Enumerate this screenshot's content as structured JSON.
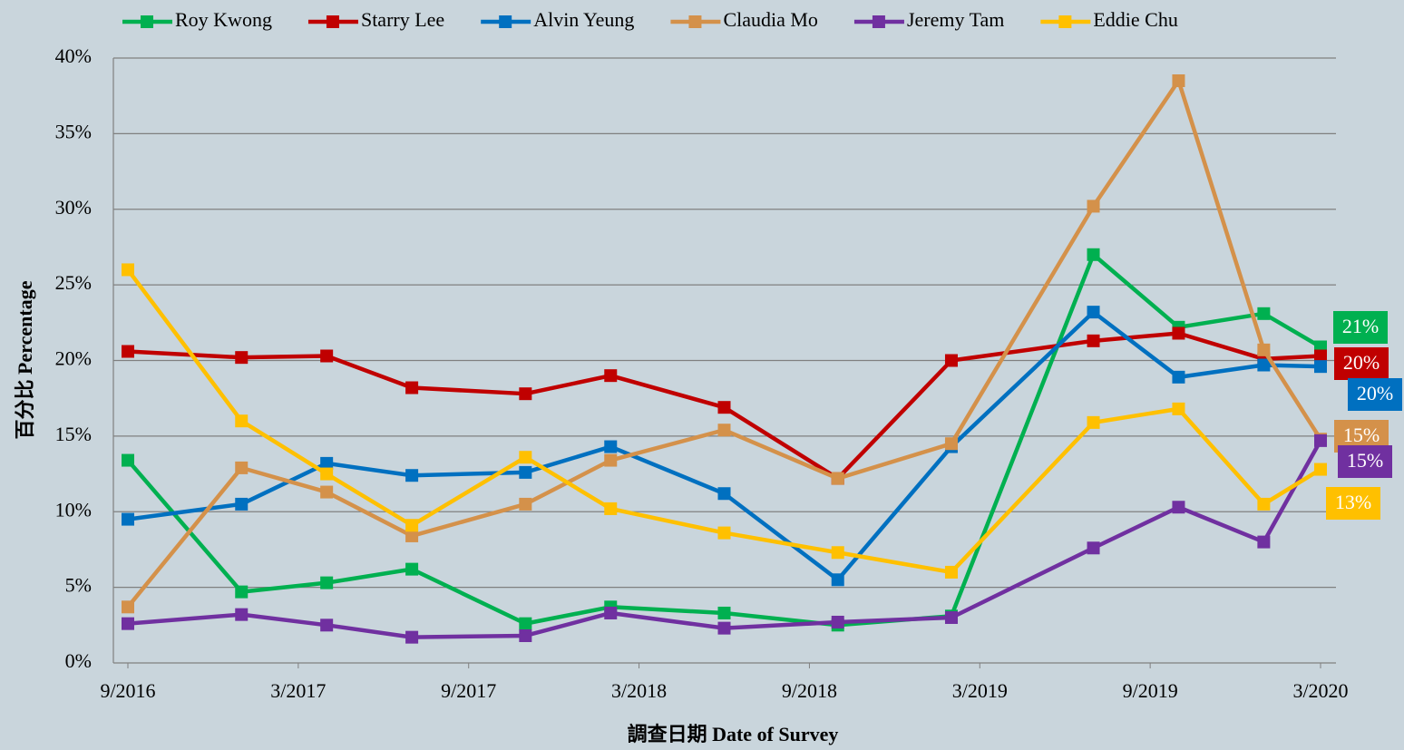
{
  "chart_data": {
    "type": "line",
    "x": [
      "2016-09",
      "2017-01",
      "2017-04",
      "2017-07",
      "2017-11",
      "2018-02",
      "2018-06",
      "2018-10",
      "2019-02",
      "2019-07",
      "2019-10",
      "2020-01",
      "2020-03"
    ],
    "xlim": [
      "2016-09",
      "2020-03"
    ],
    "xticks": [
      {
        "value": "2016-09",
        "label": "9/2016"
      },
      {
        "value": "2017-03",
        "label": "3/2017"
      },
      {
        "value": "2017-09",
        "label": "9/2017"
      },
      {
        "value": "2018-03",
        "label": "3/2018"
      },
      {
        "value": "2018-09",
        "label": "9/2018"
      },
      {
        "value": "2019-03",
        "label": "3/2019"
      },
      {
        "value": "2019-09",
        "label": "9/2019"
      },
      {
        "value": "2020-03",
        "label": "3/2020"
      }
    ],
    "ylim": [
      0,
      40
    ],
    "yticks": [
      {
        "value": 0,
        "label": "0%"
      },
      {
        "value": 5,
        "label": "5%"
      },
      {
        "value": 10,
        "label": "10%"
      },
      {
        "value": 15,
        "label": "15%"
      },
      {
        "value": 20,
        "label": "20%"
      },
      {
        "value": 25,
        "label": "25%"
      },
      {
        "value": 30,
        "label": "30%"
      },
      {
        "value": 35,
        "label": "35%"
      },
      {
        "value": 40,
        "label": "40%"
      }
    ],
    "grid": true,
    "legend": "top",
    "xlabel": "調查日期  Date of Survey",
    "ylabel": "百分比 Percentage",
    "series": [
      {
        "name": "Roy Kwong",
        "color": "#00b050",
        "values": [
          13.4,
          4.7,
          5.3,
          6.2,
          2.6,
          3.7,
          3.3,
          2.5,
          3.1,
          27.0,
          22.2,
          23.1,
          20.9
        ],
        "value_labels": [
          null,
          null,
          null,
          null,
          null,
          null,
          null,
          null,
          null,
          null,
          null,
          null,
          "21%"
        ]
      },
      {
        "name": "Starry Lee",
        "color": "#c00000",
        "values": [
          20.6,
          20.2,
          20.3,
          18.2,
          17.8,
          19.0,
          16.9,
          12.2,
          20.0,
          21.3,
          21.8,
          20.1,
          20.3
        ],
        "value_labels": [
          null,
          null,
          null,
          null,
          null,
          null,
          null,
          null,
          null,
          null,
          null,
          null,
          "20%"
        ]
      },
      {
        "name": "Alvin Yeung",
        "color": "#0070c0",
        "values": [
          9.5,
          10.5,
          13.2,
          12.4,
          12.6,
          14.3,
          11.2,
          5.5,
          14.3,
          23.2,
          18.9,
          19.7,
          19.6
        ],
        "value_labels": [
          null,
          null,
          null,
          null,
          null,
          null,
          null,
          null,
          null,
          null,
          null,
          null,
          "20%"
        ]
      },
      {
        "name": "Claudia Mo",
        "color": "#d4914a",
        "values": [
          3.7,
          12.9,
          11.3,
          8.4,
          10.5,
          13.4,
          15.4,
          12.2,
          14.5,
          30.2,
          38.5,
          20.7,
          14.8
        ],
        "value_labels": [
          null,
          null,
          null,
          null,
          null,
          null,
          null,
          null,
          null,
          null,
          null,
          null,
          "15%"
        ]
      },
      {
        "name": "Jeremy Tam",
        "color": "#7030a0",
        "values": [
          2.6,
          3.2,
          2.5,
          1.7,
          1.8,
          3.3,
          2.3,
          2.7,
          3.0,
          7.6,
          10.3,
          8.0,
          14.7
        ],
        "value_labels": [
          null,
          null,
          null,
          null,
          null,
          null,
          null,
          null,
          null,
          null,
          null,
          null,
          "15%"
        ]
      },
      {
        "name": "Eddie Chu",
        "color": "#ffc000",
        "values": [
          26.0,
          16.0,
          12.5,
          9.1,
          13.6,
          10.2,
          8.6,
          7.3,
          6.0,
          15.9,
          16.8,
          10.5,
          12.8
        ],
        "value_labels": [
          null,
          null,
          null,
          null,
          null,
          null,
          null,
          null,
          null,
          null,
          null,
          null,
          "13%"
        ]
      }
    ]
  }
}
